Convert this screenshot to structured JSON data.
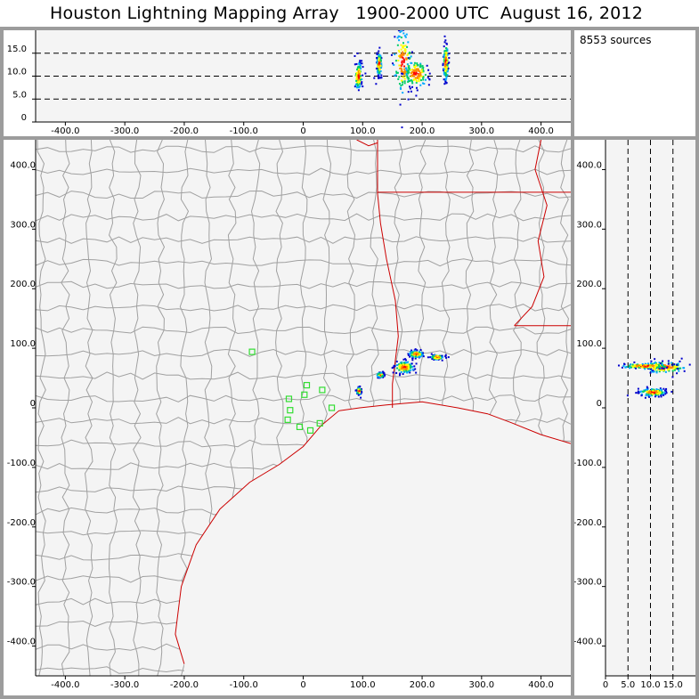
{
  "title": "Houston Lightning Mapping Array   1900-2000 UTC  August 16, 2012",
  "source_count": "8553 sources",
  "colors": {
    "frame": "#9c9c9c",
    "plot_bg": "#f4f4f4",
    "county_lines": "#a0a0a0",
    "coast_and_state_lines": "#cc0000",
    "station_markers": "#33dd33",
    "density_scale": [
      "#0000cc",
      "#00aaff",
      "#00cc66",
      "#ffff00",
      "#ff8800",
      "#ff0000"
    ]
  },
  "icons": {
    "station": "green-square-icon"
  },
  "chart_data": [
    {
      "type": "scatter",
      "name": "altitude-vs-east-west",
      "xlim": [
        -450,
        450
      ],
      "ylim": [
        0,
        20
      ],
      "x_ticks": [
        "-400.0",
        "-300.0",
        "-200.0",
        "-100.0",
        "0",
        "100.0",
        "200.0",
        "300.0",
        "400.0"
      ],
      "y_ticks": [
        "0",
        "5.0",
        "10.0",
        "15.0"
      ],
      "reference_lines": [
        5,
        10,
        15
      ],
      "grid": false,
      "clusters": [
        {
          "x": 93,
          "y": 10,
          "sx": 3,
          "sy": 1.5
        },
        {
          "x": 128,
          "y": 12.5,
          "sx": 2,
          "sy": 1.2
        },
        {
          "x": 168,
          "y": 13,
          "sx": 8,
          "sy": 3.5
        },
        {
          "x": 190,
          "y": 10.5,
          "sx": 10,
          "sy": 1.5
        },
        {
          "x": 240,
          "y": 13,
          "sx": 2,
          "sy": 2
        }
      ]
    },
    {
      "type": "scatter",
      "name": "plan-view-north-south-vs-east-west",
      "xlim": [
        -450,
        450
      ],
      "ylim": [
        -450,
        450
      ],
      "x_ticks": [
        "-400.0",
        "-300.0",
        "-200.0",
        "-100.0",
        "0",
        "100.0",
        "200.0",
        "300.0",
        "400.0"
      ],
      "y_ticks": [
        "400.0",
        "300.0",
        "200.0",
        "100.0",
        "0",
        "-100.0",
        "-200.0",
        "-300.0",
        "-400.0"
      ],
      "grid": false,
      "clusters": [
        {
          "x": 170,
          "y": 68,
          "sx": 8,
          "sy": 5
        },
        {
          "x": 190,
          "y": 90,
          "sx": 6,
          "sy": 3
        },
        {
          "x": 130,
          "y": 55,
          "sx": 3,
          "sy": 2
        },
        {
          "x": 94,
          "y": 28,
          "sx": 2,
          "sy": 3
        },
        {
          "x": 225,
          "y": 85,
          "sx": 5,
          "sy": 2
        }
      ],
      "stations": [
        {
          "x": -86,
          "y": 94
        },
        {
          "x": -24,
          "y": 15
        },
        {
          "x": 2,
          "y": 22
        },
        {
          "x": 6,
          "y": 38
        },
        {
          "x": 32,
          "y": 30
        },
        {
          "x": -22,
          "y": -4
        },
        {
          "x": -26,
          "y": -20
        },
        {
          "x": -6,
          "y": -32
        },
        {
          "x": 12,
          "y": -38
        },
        {
          "x": 28,
          "y": -26
        },
        {
          "x": 48,
          "y": 0
        }
      ]
    },
    {
      "type": "scatter",
      "name": "north-south-vs-altitude",
      "xlim": [
        0,
        20
      ],
      "ylim": [
        -450,
        450
      ],
      "x_ticks": [
        "0",
        "5.0",
        "10.0",
        "15.0"
      ],
      "y_ticks": [
        "400.0",
        "300.0",
        "200.0",
        "100.0",
        "0",
        "-100.0",
        "-200.0",
        "-300.0",
        "-400.0"
      ],
      "reference_lines": [
        5,
        10,
        15
      ],
      "grid": false,
      "clusters": [
        {
          "x": 13,
          "y": 68,
          "sx": 2.5,
          "sy": 5
        },
        {
          "x": 10.5,
          "y": 26,
          "sx": 1.5,
          "sy": 3
        },
        {
          "x": 9,
          "y": 70,
          "sx": 3,
          "sy": 2
        }
      ]
    }
  ]
}
